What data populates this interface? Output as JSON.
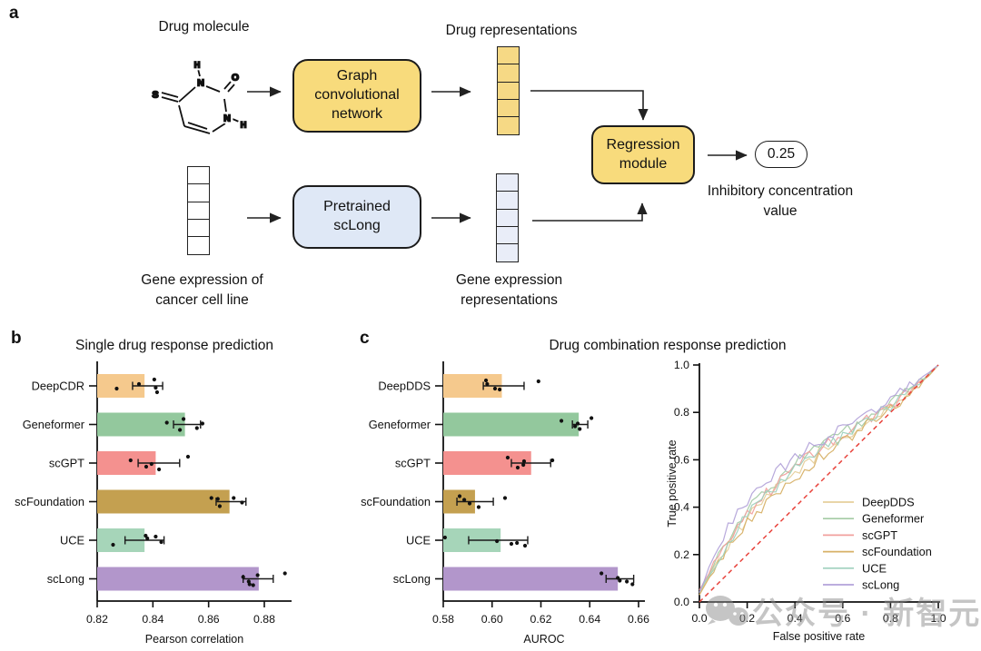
{
  "figure": {
    "panel_a": {
      "letter": "a",
      "drug_molecule_label": "Drug molecule",
      "drug_representations_label": "Drug representations",
      "gcn_box": "Graph convolutional network",
      "pretrained_box": "Pretrained scLong",
      "regression_box": "Regression module",
      "output_value": "0.25",
      "output_label": "Inhibitory concentration value",
      "gene_expression_input_label": "Gene expression of cancer cell line",
      "gene_expression_repr_label": "Gene expression representations",
      "molecule_atoms": [
        "S",
        "N",
        "O",
        "N",
        "H",
        "H"
      ],
      "vector_cells": 5,
      "colors": {
        "module_yellow": "#F8DB7C",
        "module_blue": "#DFE8F6",
        "vector_yellow": "#F6D985",
        "vector_blue": "#E9EDF8",
        "vector_white": "#FFFFFF"
      }
    },
    "watermark": {
      "icon": "wechat-icon",
      "text": "公众号 · 新智元",
      "color": "#8c8c8c"
    }
  },
  "chart_data": [
    {
      "id": "single_drug",
      "type": "bar",
      "orientation": "horizontal",
      "panel_letter": "b",
      "title": "Single drug response prediction",
      "xlabel": "Pearson correlation",
      "xlim": [
        0.82,
        0.89
      ],
      "xticks": [
        0.82,
        0.84,
        0.86,
        0.88
      ],
      "tick_decimals": 2,
      "grid": false,
      "categories": [
        "DeepCDR",
        "Geneformer",
        "scGPT",
        "scFoundation",
        "UCE",
        "scLong"
      ],
      "values": [
        0.837,
        0.8515,
        0.841,
        0.8675,
        0.837,
        0.878
      ],
      "bar_colors": [
        "#F5C98D",
        "#93C89D",
        "#F4918F",
        "#C4A050",
        "#A6D5B9",
        "#B296CB"
      ],
      "error_bars": [
        [
          0.8327,
          0.8435
        ],
        [
          0.8474,
          0.8571
        ],
        [
          0.8347,
          0.8496
        ],
        [
          0.8627,
          0.8734
        ],
        [
          0.83,
          0.844
        ],
        [
          0.8724,
          0.8832
        ]
      ],
      "scatter_points": [
        [
          [
            0.827,
            3
          ],
          [
            0.835,
            -2
          ],
          [
            0.8405,
            -7
          ],
          [
            0.841,
            2
          ],
          [
            0.8415,
            7
          ]
        ],
        [
          [
            0.845,
            -2
          ],
          [
            0.8497,
            6
          ],
          [
            0.851,
            -6
          ],
          [
            0.8558,
            4
          ],
          [
            0.8578,
            -1
          ]
        ],
        [
          [
            0.832,
            -3
          ],
          [
            0.8376,
            4
          ],
          [
            0.8395,
            1
          ],
          [
            0.8422,
            7
          ],
          [
            0.8526,
            -7
          ]
        ],
        [
          [
            0.861,
            -4
          ],
          [
            0.8633,
            -3
          ],
          [
            0.864,
            5
          ],
          [
            0.869,
            -4
          ],
          [
            0.872,
            1
          ]
        ],
        [
          [
            0.8257,
            5
          ],
          [
            0.8374,
            -5
          ],
          [
            0.838,
            -2
          ],
          [
            0.841,
            -4
          ],
          [
            0.843,
            2
          ]
        ],
        [
          [
            0.8724,
            -2
          ],
          [
            0.8744,
            3
          ],
          [
            0.8747,
            6
          ],
          [
            0.876,
            7
          ],
          [
            0.8776,
            -4
          ],
          [
            0.8874,
            -6
          ]
        ]
      ]
    },
    {
      "id": "drug_combination",
      "type": "bar",
      "orientation": "horizontal",
      "panel_letter": "c",
      "title": "Drug combination response prediction",
      "xlabel": "AUROC",
      "xlim": [
        0.58,
        0.662
      ],
      "xticks": [
        0.58,
        0.6,
        0.62,
        0.64,
        0.66
      ],
      "tick_decimals": 2,
      "grid": false,
      "categories": [
        "DeepDDS",
        "Geneformer",
        "scGPT",
        "scFoundation",
        "UCE",
        "scLong"
      ],
      "values": [
        0.604,
        0.6355,
        0.616,
        0.593,
        0.6035,
        0.6515
      ],
      "bar_colors": [
        "#F5C98D",
        "#93C89D",
        "#F4918F",
        "#C4A050",
        "#A6D5B9",
        "#B296CB"
      ],
      "error_bars": [
        [
          0.5964,
          0.6131
        ],
        [
          0.6329,
          0.6392
        ],
        [
          0.6079,
          0.624
        ],
        [
          0.5856,
          0.6005
        ],
        [
          0.5904,
          0.6146
        ],
        [
          0.6467,
          0.658
        ]
      ],
      "scatter_points": [
        [
          [
            0.5975,
            -6
          ],
          [
            0.598,
            -2
          ],
          [
            0.6012,
            3
          ],
          [
            0.6031,
            4
          ],
          [
            0.619,
            -5
          ]
        ],
        [
          [
            0.6284,
            -4
          ],
          [
            0.634,
            2
          ],
          [
            0.6351,
            -1
          ],
          [
            0.6359,
            5
          ],
          [
            0.6407,
            -7
          ]
        ],
        [
          [
            0.6064,
            -6
          ],
          [
            0.6105,
            5
          ],
          [
            0.6128,
            2
          ],
          [
            0.6131,
            -2
          ],
          [
            0.6247,
            -3
          ]
        ],
        [
          [
            0.5867,
            -6
          ],
          [
            0.5886,
            -2
          ],
          [
            0.5908,
            2
          ],
          [
            0.5945,
            6
          ],
          [
            0.6053,
            -4
          ]
        ],
        [
          [
            0.5807,
            -3
          ],
          [
            0.602,
            1
          ],
          [
            0.6079,
            4
          ],
          [
            0.6102,
            3
          ],
          [
            0.6135,
            6
          ]
        ],
        [
          [
            0.6448,
            -6
          ],
          [
            0.6515,
            -1
          ],
          [
            0.6523,
            2
          ],
          [
            0.6552,
            3
          ],
          [
            0.6575,
            6
          ]
        ]
      ]
    },
    {
      "id": "roc",
      "type": "line",
      "xlabel": "False positive rate",
      "ylabel": "True positive rate",
      "xlim": [
        0.0,
        1.0
      ],
      "ylim": [
        0.0,
        1.0
      ],
      "xticks": [
        0.0,
        0.2,
        0.4,
        0.6,
        0.8,
        1.0
      ],
      "yticks": [
        0.0,
        0.2,
        0.4,
        0.6,
        0.8,
        1.0
      ],
      "tick_decimals": 1,
      "legend_position": "inside lower-right",
      "diagonal": {
        "style": "dashed",
        "color": "#E8433C"
      },
      "x": [
        0,
        0.05,
        0.1,
        0.15,
        0.2,
        0.3,
        0.4,
        0.5,
        0.6,
        0.7,
        0.8,
        0.9,
        1.0
      ],
      "series": [
        {
          "name": "DeepDDS",
          "color": "#E6CF9B",
          "y": [
            0.03,
            0.125,
            0.21,
            0.285,
            0.35,
            0.455,
            0.545,
            0.625,
            0.69,
            0.755,
            0.825,
            0.9,
            1.0
          ]
        },
        {
          "name": "Geneformer",
          "color": "#A5CBA5",
          "y": [
            0.04,
            0.14,
            0.24,
            0.32,
            0.385,
            0.49,
            0.585,
            0.66,
            0.715,
            0.765,
            0.835,
            0.91,
            1.0
          ]
        },
        {
          "name": "scGPT",
          "color": "#F1A09E",
          "y": [
            0.05,
            0.14,
            0.23,
            0.305,
            0.375,
            0.475,
            0.57,
            0.645,
            0.705,
            0.765,
            0.83,
            0.91,
            1.0
          ]
        },
        {
          "name": "scFoundation",
          "color": "#D7B167",
          "y": [
            0.03,
            0.12,
            0.2,
            0.27,
            0.335,
            0.435,
            0.525,
            0.605,
            0.675,
            0.745,
            0.815,
            0.895,
            1.0
          ]
        },
        {
          "name": "UCE",
          "color": "#9FD1BD",
          "y": [
            0.04,
            0.13,
            0.22,
            0.3,
            0.365,
            0.465,
            0.56,
            0.635,
            0.7,
            0.76,
            0.83,
            0.905,
            1.0
          ]
        },
        {
          "name": "scLong",
          "color": "#B3A3D9",
          "y": [
            0.04,
            0.17,
            0.28,
            0.36,
            0.43,
            0.53,
            0.61,
            0.675,
            0.735,
            0.79,
            0.855,
            0.925,
            1.0
          ]
        }
      ]
    }
  ]
}
